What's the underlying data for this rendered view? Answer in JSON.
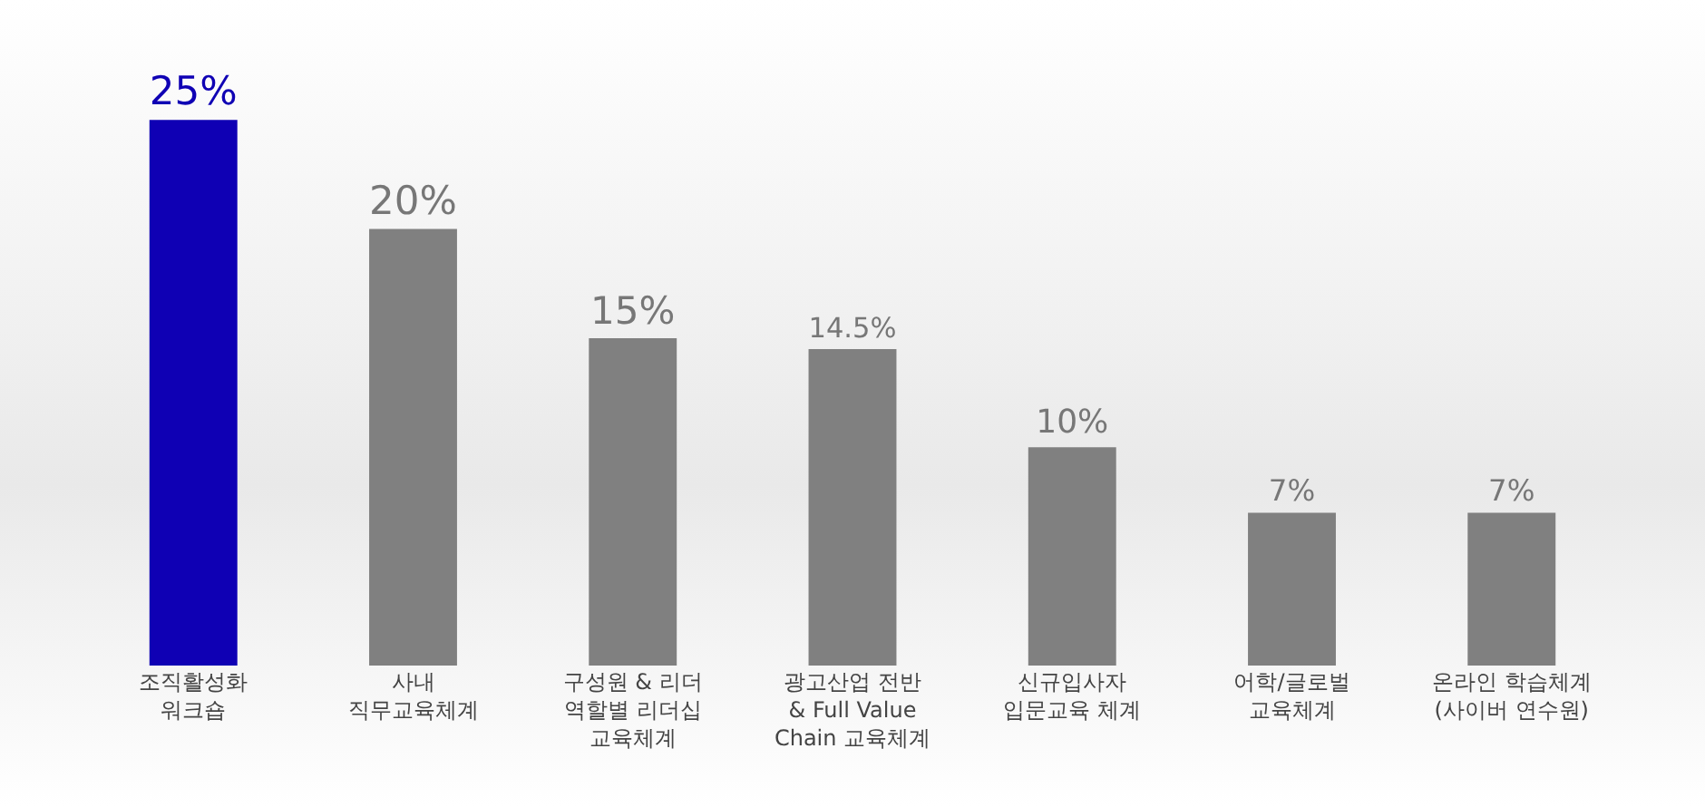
{
  "chart_data": {
    "type": "bar",
    "categories": [
      "조직활성화\n워크숍",
      "사내\n직무교육체계",
      "구성원 & 리더\n역할별 리더십\n교육체계",
      "광고산업 전반\n& Full Value\nChain 교육체계",
      "신규입사자\n입문교육 체계",
      "어학/글로벌\n교육체계",
      "온라인 학습체계\n(사이버 연수원)"
    ],
    "values": [
      25,
      20,
      15,
      14.5,
      10,
      7,
      7
    ],
    "value_labels": [
      "25%",
      "20%",
      "15%",
      "14.5%",
      "10%",
      "7%",
      "7%"
    ],
    "colors": [
      "#0f00b4",
      "#808080",
      "#808080",
      "#808080",
      "#808080",
      "#808080",
      "#808080"
    ]
  }
}
